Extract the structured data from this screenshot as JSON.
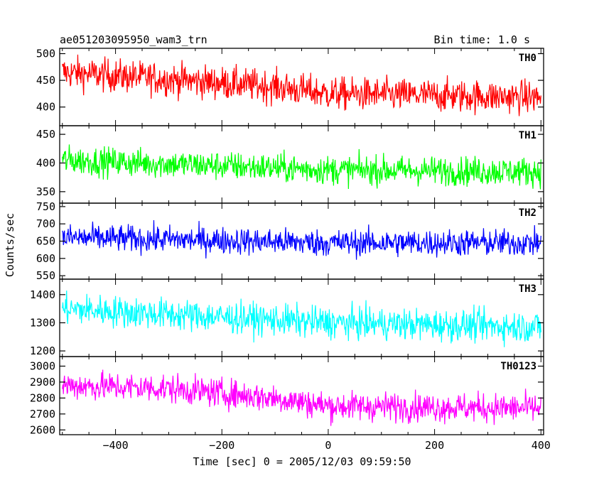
{
  "header": {
    "title": "ae051203095950_wam3_trn",
    "bin_time": "Bin time: 1.0 s"
  },
  "axes": {
    "ylabel": "Counts/sec",
    "xlabel": "Time [sec] 0 = 2005/12/03 09:59:50"
  },
  "chart_data": {
    "type": "line",
    "title": "ae051203095950_wam3_trn",
    "xlabel": "Time [sec] 0 = 2005/12/03 09:59:50",
    "ylabel": "Counts/sec",
    "xlim": [
      -505,
      405
    ],
    "x_ticks": [
      -400,
      -200,
      0,
      200,
      400
    ],
    "x_step": 1.0,
    "x_start": -500,
    "x_end": 400,
    "grid": false,
    "panels": [
      {
        "name": "TH0",
        "color": "#ff0000",
        "ylim": [
          365,
          510
        ],
        "y_ticks": [
          400,
          450,
          500
        ],
        "trend": [
          [
            -500,
            465
          ],
          [
            -300,
            452
          ],
          [
            -100,
            438
          ],
          [
            0,
            425
          ],
          [
            400,
            418
          ]
        ],
        "noise": 22
      },
      {
        "name": "TH1",
        "color": "#00ff00",
        "ylim": [
          330,
          465
        ],
        "y_ticks": [
          350,
          400,
          450
        ],
        "trend": [
          [
            -500,
            405
          ],
          [
            -200,
            395
          ],
          [
            0,
            388
          ],
          [
            400,
            385
          ]
        ],
        "noise": 18
      },
      {
        "name": "TH2",
        "color": "#0000ff",
        "ylim": [
          540,
          760
        ],
        "y_ticks": [
          550,
          600,
          650,
          700,
          750
        ],
        "trend": [
          [
            -500,
            660
          ],
          [
            -300,
            655
          ],
          [
            0,
            645
          ],
          [
            400,
            645
          ]
        ],
        "noise": 28
      },
      {
        "name": "TH3",
        "color": "#00ffff",
        "ylim": [
          1180,
          1455
        ],
        "y_ticks": [
          1200,
          1300,
          1400
        ],
        "trend": [
          [
            -500,
            1350
          ],
          [
            -300,
            1330
          ],
          [
            0,
            1300
          ],
          [
            400,
            1285
          ]
        ],
        "noise": 40
      },
      {
        "name": "TH0123",
        "color": "#ff00ff",
        "ylim": [
          2570,
          3060
        ],
        "y_ticks": [
          2600,
          2700,
          2800,
          2900,
          3000
        ],
        "trend": [
          [
            -500,
            2880
          ],
          [
            -300,
            2860
          ],
          [
            -100,
            2800
          ],
          [
            0,
            2750
          ],
          [
            400,
            2735
          ]
        ],
        "noise": 65
      }
    ]
  }
}
